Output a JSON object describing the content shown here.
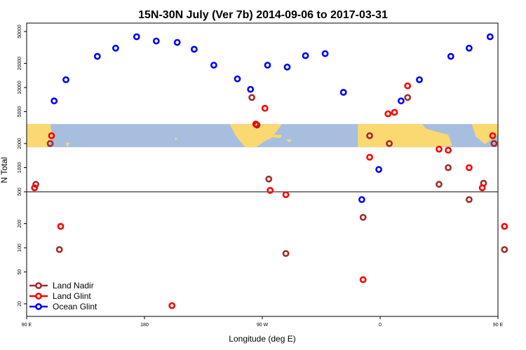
{
  "chart_data": {
    "type": "scatter",
    "title": "15N-30N July (Ver 7b)   2014-09-06 to 2017-03-31",
    "xlabel": "Longitude (deg E)",
    "ylabel": "N Total",
    "x_range": [
      90,
      450
    ],
    "y_scale": "log",
    "ylim": [
      15,
      60000
    ],
    "x_ticks": [
      {
        "value": 90,
        "label": "90 E"
      },
      {
        "value": 180,
        "label": "180"
      },
      {
        "value": 270,
        "label": "90 W"
      },
      {
        "value": 360,
        "label": "0"
      },
      {
        "value": 450,
        "label": "90 E"
      },
      {
        "value": 540,
        "label": "180"
      }
    ],
    "y_ticks": [
      {
        "value": 20,
        "label": "20"
      },
      {
        "value": 50,
        "label": "50"
      },
      {
        "value": 100,
        "label": "100"
      },
      {
        "value": 200,
        "label": "200"
      },
      {
        "value": 500,
        "label": "500"
      },
      {
        "value": 1000,
        "label": "1000"
      },
      {
        "value": 2000,
        "label": "2000"
      },
      {
        "value": 5000,
        "label": "5000"
      },
      {
        "value": 10000,
        "label": "10000"
      },
      {
        "value": 20000,
        "label": "20000"
      },
      {
        "value": 50000,
        "label": "50000"
      }
    ],
    "reference_line": 500,
    "map_band": {
      "lat_range": [
        15,
        30
      ],
      "y_bottom": 1800,
      "y_top": 3500
    },
    "legend_position": "bottom-left",
    "series": [
      {
        "name": "Land Nadir",
        "color": "#a52a2a",
        "points": [
          {
            "x": 97,
            "y": 620
          },
          {
            "x": 108,
            "y": 2000
          },
          {
            "x": 115,
            "y": 95
          },
          {
            "x": 262,
            "y": 7500
          },
          {
            "x": 266,
            "y": 3400
          },
          {
            "x": 275,
            "y": 720
          },
          {
            "x": 288,
            "y": 85
          },
          {
            "x": 347,
            "y": 240
          },
          {
            "x": 352,
            "y": 2500
          },
          {
            "x": 367,
            "y": 2000
          },
          {
            "x": 381,
            "y": 7500
          },
          {
            "x": 405,
            "y": 620
          },
          {
            "x": 412,
            "y": 1000
          },
          {
            "x": 428,
            "y": 400
          },
          {
            "x": 439,
            "y": 640
          },
          {
            "x": 447,
            "y": 2000
          },
          {
            "x": 455,
            "y": 95
          }
        ]
      },
      {
        "name": "Land Glint",
        "color": "#ff0000",
        "points": [
          {
            "x": 96,
            "y": 560
          },
          {
            "x": 109,
            "y": 2500
          },
          {
            "x": 116,
            "y": 185
          },
          {
            "x": 201,
            "y": 19
          },
          {
            "x": 265,
            "y": 3500
          },
          {
            "x": 272,
            "y": 5500
          },
          {
            "x": 276,
            "y": 520
          },
          {
            "x": 288,
            "y": 460
          },
          {
            "x": 347,
            "y": 40
          },
          {
            "x": 352,
            "y": 1350
          },
          {
            "x": 366,
            "y": 4700
          },
          {
            "x": 371,
            "y": 4900
          },
          {
            "x": 381,
            "y": 10500
          },
          {
            "x": 405,
            "y": 1700
          },
          {
            "x": 412,
            "y": 1650
          },
          {
            "x": 428,
            "y": 1000
          },
          {
            "x": 438,
            "y": 560
          },
          {
            "x": 446,
            "y": 2500
          },
          {
            "x": 455,
            "y": 185
          }
        ]
      },
      {
        "name": "Ocean Glint",
        "color": "#0000ff",
        "points": [
          {
            "x": 111,
            "y": 6800
          },
          {
            "x": 120,
            "y": 12500
          },
          {
            "x": 144,
            "y": 24500
          },
          {
            "x": 158,
            "y": 31000
          },
          {
            "x": 174,
            "y": 43000
          },
          {
            "x": 189,
            "y": 38000
          },
          {
            "x": 205,
            "y": 36500
          },
          {
            "x": 218,
            "y": 30000
          },
          {
            "x": 233,
            "y": 19000
          },
          {
            "x": 251,
            "y": 12800
          },
          {
            "x": 261,
            "y": 9500
          },
          {
            "x": 274,
            "y": 19000
          },
          {
            "x": 289,
            "y": 18000
          },
          {
            "x": 303,
            "y": 25000
          },
          {
            "x": 318,
            "y": 26500
          },
          {
            "x": 332,
            "y": 8700
          },
          {
            "x": 346,
            "y": 400
          },
          {
            "x": 359,
            "y": 950
          },
          {
            "x": 376,
            "y": 6800
          },
          {
            "x": 390,
            "y": 12500
          },
          {
            "x": 414,
            "y": 24500
          },
          {
            "x": 428,
            "y": 31000
          },
          {
            "x": 444,
            "y": 43000
          }
        ]
      }
    ]
  }
}
